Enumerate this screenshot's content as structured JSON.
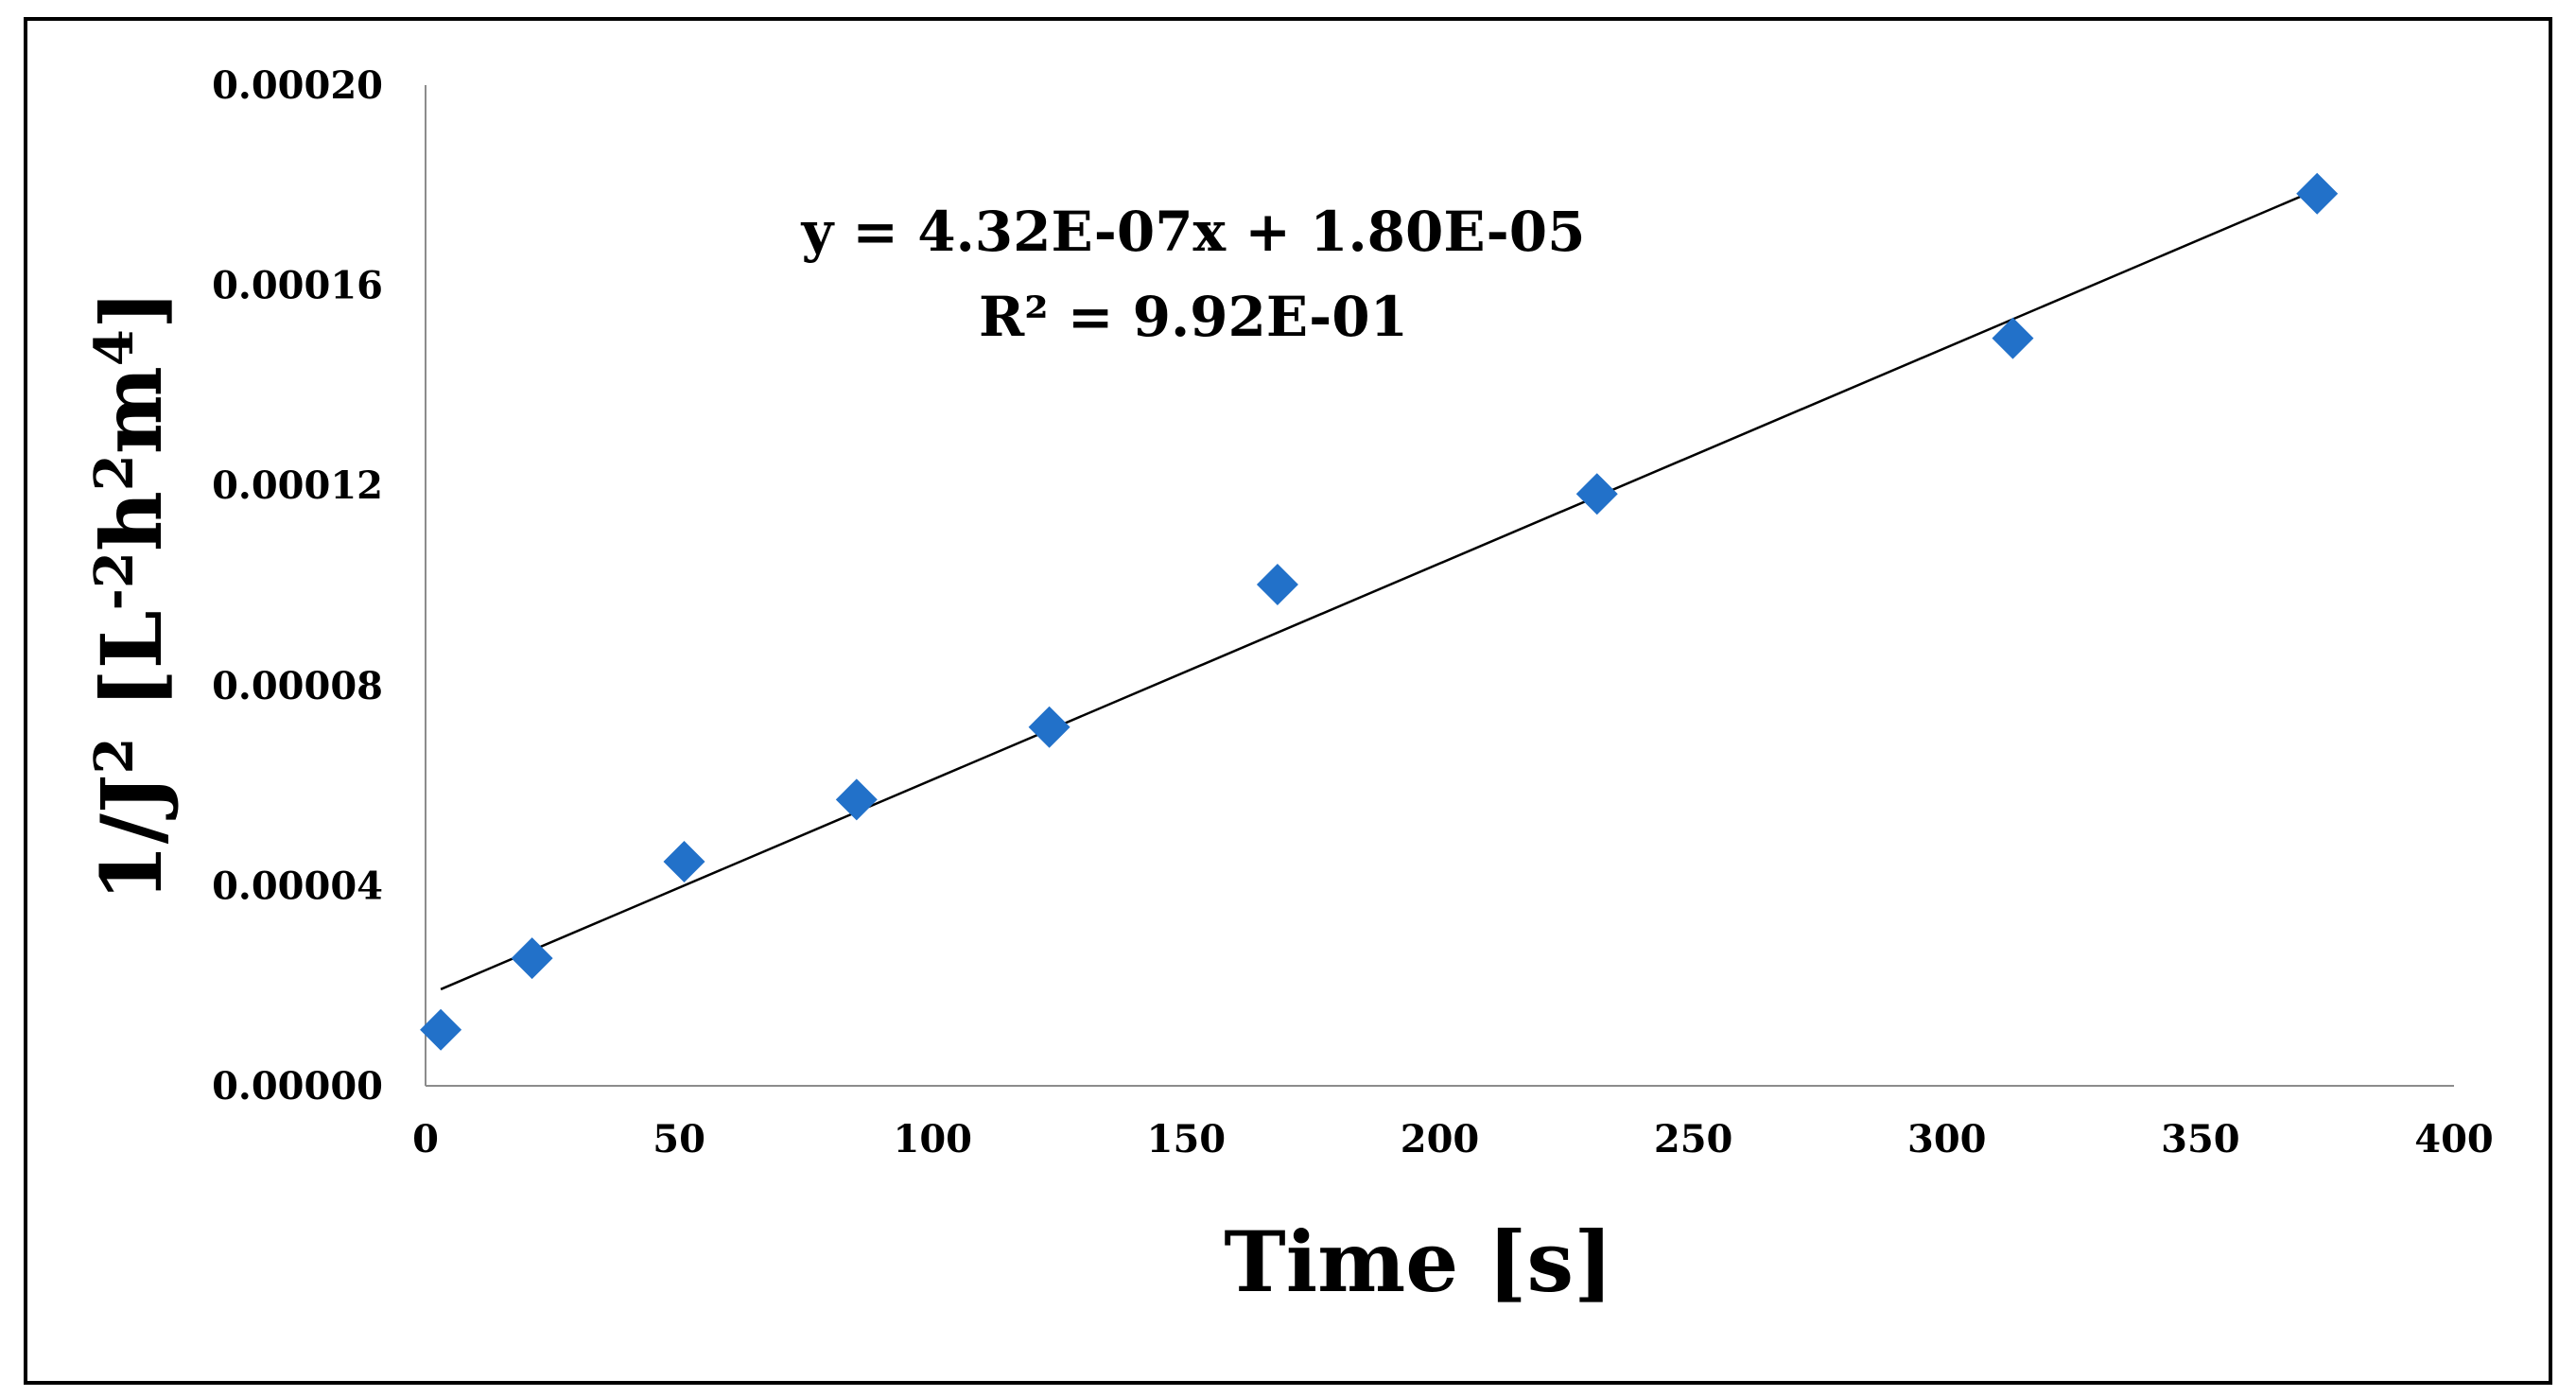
{
  "chart_data": {
    "type": "scatter",
    "title": "",
    "xlabel": "Time [s]",
    "ylabel": {
      "base": "1/J",
      "sup1": "2",
      "bracket_open": " [L",
      "sup2": "-2",
      "mid1": "h",
      "sup3": "2",
      "mid2": "m",
      "sup4": "4",
      "bracket_close": "]"
    },
    "xlim": [
      0,
      400
    ],
    "ylim": [
      0,
      0.0002
    ],
    "xticks": [
      0,
      50,
      100,
      150,
      200,
      250,
      300,
      350,
      400
    ],
    "xtick_labels": [
      "0",
      "50",
      "100",
      "150",
      "200",
      "250",
      "300",
      "350",
      "400"
    ],
    "yticks": [
      0,
      4e-05,
      8e-05,
      0.00012,
      0.00016,
      0.0002
    ],
    "ytick_labels": [
      "0.00000",
      "0.00004",
      "0.00008",
      "0.00012",
      "0.00016",
      "0.00020"
    ],
    "grid": false,
    "legend": "none",
    "series": [
      {
        "marker": "diamond",
        "color": "#2271c9",
        "points": [
          {
            "x": 3,
            "y": 1.12e-05
          },
          {
            "x": 21,
            "y": 2.55e-05
          },
          {
            "x": 51,
            "y": 4.48e-05
          },
          {
            "x": 85,
            "y": 5.72e-05
          },
          {
            "x": 123,
            "y": 7.17e-05
          },
          {
            "x": 168,
            "y": 0.0001002
          },
          {
            "x": 231,
            "y": 0.0001183
          },
          {
            "x": 313,
            "y": 0.0001494
          },
          {
            "x": 373,
            "y": 0.0001783
          }
        ]
      }
    ],
    "trendline": {
      "slope": 4.32e-07,
      "intercept": 1.8e-05,
      "x_range": [
        3,
        373
      ],
      "color": "#000000"
    },
    "annotations": {
      "equation": "y = 4.32E-07x + 1.80E-05",
      "r_squared": "R² = 9.92E-01"
    }
  }
}
